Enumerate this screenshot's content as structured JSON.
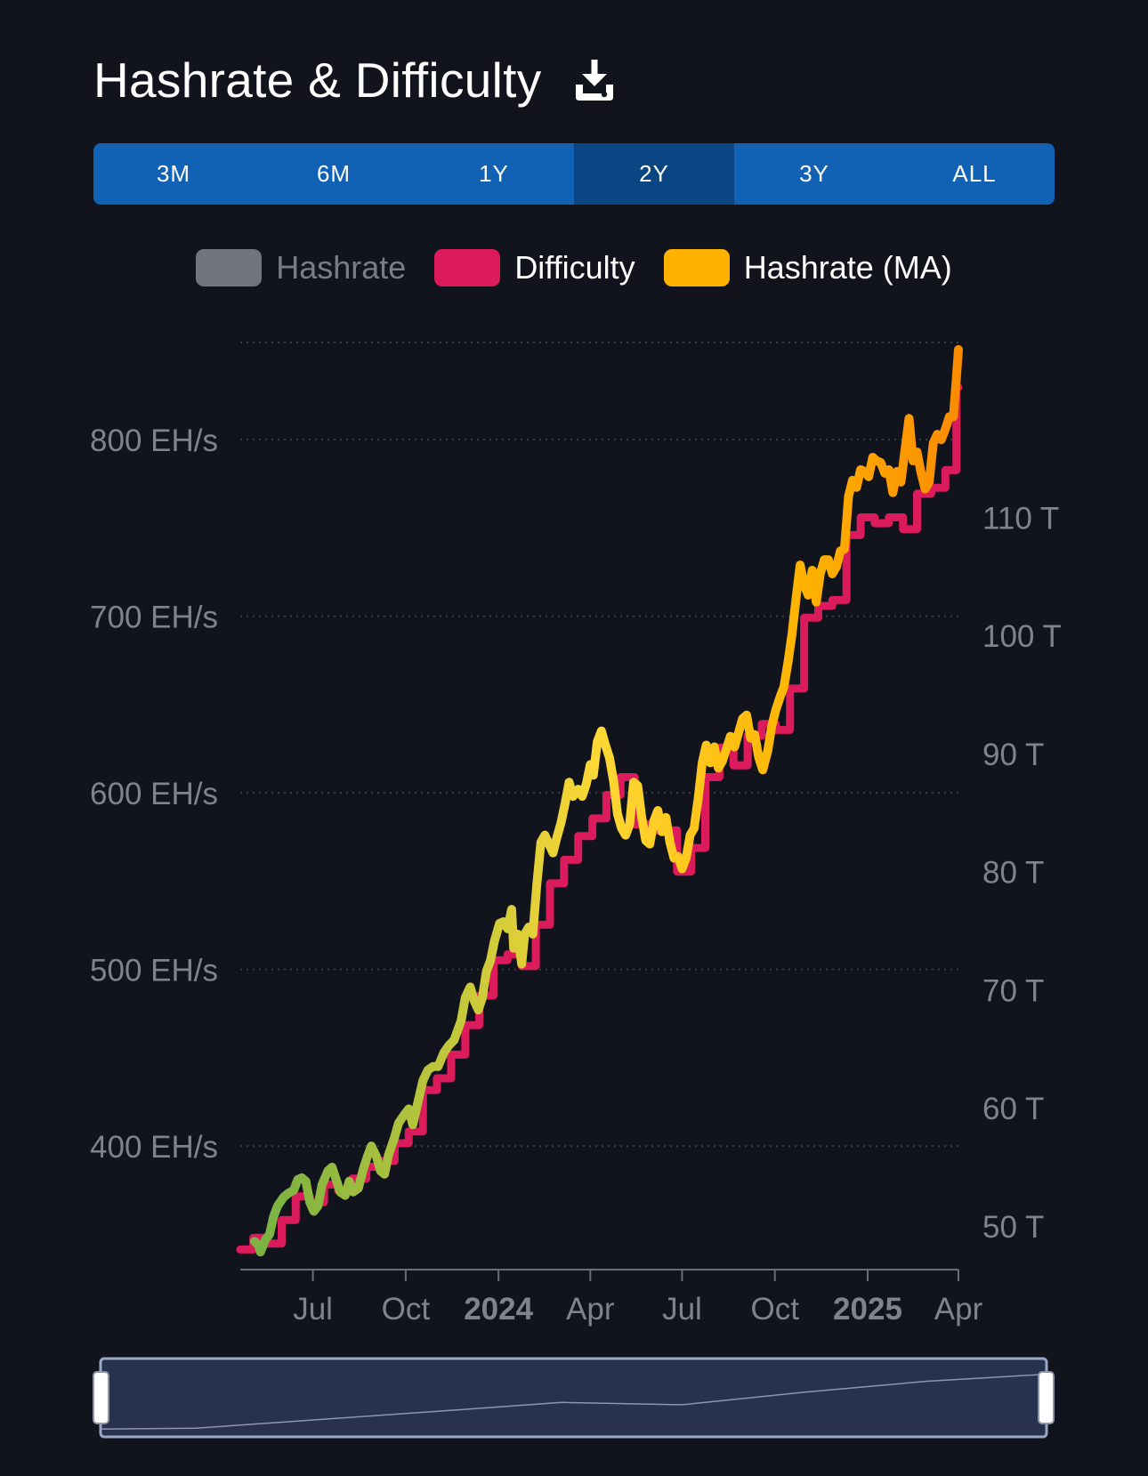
{
  "header": {
    "title": "Hashrate & Difficulty",
    "download_icon": "download-icon"
  },
  "ranges": [
    {
      "label": "3M",
      "active": false
    },
    {
      "label": "6M",
      "active": false
    },
    {
      "label": "1Y",
      "active": false
    },
    {
      "label": "2Y",
      "active": true
    },
    {
      "label": "3Y",
      "active": false
    },
    {
      "label": "ALL",
      "active": false
    }
  ],
  "legend": [
    {
      "label": "Hashrate",
      "color": "#72757f",
      "enabled": false
    },
    {
      "label": "Difficulty",
      "color": "#db1b5c",
      "enabled": true
    },
    {
      "label": "Hashrate (MA)",
      "color": "#ffb300",
      "enabled": true
    }
  ],
  "colors": {
    "background": "#11131d",
    "grid": "#3a3d48",
    "axis_text": "#80838d",
    "ma_gradient": [
      "#7cb342",
      "#fdd835",
      "#ffb300",
      "#fb8c00"
    ],
    "difficulty": "#db1b5c",
    "navigator_fill": "#28324f",
    "navigator_border": "#9aa8c7"
  },
  "chart_data": {
    "type": "line",
    "x_range": [
      "2023-04-20",
      "2025-04-01"
    ],
    "x_ticks": [
      {
        "label": "Jul",
        "date": "2023-07-01",
        "bold": false
      },
      {
        "label": "Oct",
        "date": "2023-10-01",
        "bold": false
      },
      {
        "label": "2024",
        "date": "2024-01-01",
        "bold": true
      },
      {
        "label": "Apr",
        "date": "2024-04-01",
        "bold": false
      },
      {
        "label": "Jul",
        "date": "2024-07-01",
        "bold": false
      },
      {
        "label": "Oct",
        "date": "2024-10-01",
        "bold": false
      },
      {
        "label": "2025",
        "date": "2025-01-01",
        "bold": true
      },
      {
        "label": "Apr",
        "date": "2025-04-01",
        "bold": false
      }
    ],
    "y_left": {
      "unit": "EH/s",
      "ticks": [
        400,
        500,
        600,
        700,
        800
      ],
      "tick_labels": [
        "400 EH/s",
        "500 EH/s",
        "600 EH/s",
        "700 EH/s",
        "800 EH/s"
      ],
      "range": [
        330,
        855
      ]
    },
    "y_right": {
      "unit": "T",
      "ticks": [
        50,
        60,
        70,
        80,
        90,
        100,
        110
      ],
      "tick_labels": [
        "50 T",
        "60 T",
        "70 T",
        "80 T",
        "90 T",
        "100 T",
        "110 T"
      ],
      "range": [
        46.3,
        124.8
      ]
    },
    "series": [
      {
        "name": "Difficulty",
        "axis": "right",
        "step": true,
        "points": [
          [
            "2023-04-20",
            48.0
          ],
          [
            "2023-05-03",
            49.0
          ],
          [
            "2023-05-17",
            48.5
          ],
          [
            "2023-05-31",
            50.5
          ],
          [
            "2023-06-14",
            52.5
          ],
          [
            "2023-06-28",
            52.0
          ],
          [
            "2023-07-12",
            53.5
          ],
          [
            "2023-07-26",
            53.0
          ],
          [
            "2023-08-09",
            54.0
          ],
          [
            "2023-08-23",
            55.0
          ],
          [
            "2023-09-06",
            55.5
          ],
          [
            "2023-09-20",
            57.0
          ],
          [
            "2023-10-04",
            58.0
          ],
          [
            "2023-10-18",
            61.5
          ],
          [
            "2023-11-01",
            62.5
          ],
          [
            "2023-11-15",
            64.5
          ],
          [
            "2023-11-29",
            67.0
          ],
          [
            "2023-12-13",
            69.5
          ],
          [
            "2023-12-27",
            72.5
          ],
          [
            "2024-01-10",
            73.0
          ],
          [
            "2024-01-24",
            72.0
          ],
          [
            "2024-02-07",
            75.5
          ],
          [
            "2024-02-21",
            79.0
          ],
          [
            "2024-03-06",
            81.0
          ],
          [
            "2024-03-20",
            83.0
          ],
          [
            "2024-04-03",
            84.5
          ],
          [
            "2024-04-17",
            86.5
          ],
          [
            "2024-05-01",
            88.0
          ],
          [
            "2024-05-15",
            84.0
          ],
          [
            "2024-05-29",
            83.5
          ],
          [
            "2024-06-12",
            83.5
          ],
          [
            "2024-06-26",
            80.0
          ],
          [
            "2024-07-10",
            82.0
          ],
          [
            "2024-07-24",
            88.0
          ],
          [
            "2024-08-07",
            90.5
          ],
          [
            "2024-08-21",
            89.0
          ],
          [
            "2024-09-04",
            91.5
          ],
          [
            "2024-09-18",
            92.5
          ],
          [
            "2024-10-02",
            92.0
          ],
          [
            "2024-10-16",
            95.5
          ],
          [
            "2024-10-30",
            101.5
          ],
          [
            "2024-11-13",
            102.5
          ],
          [
            "2024-11-27",
            103.0
          ],
          [
            "2024-12-11",
            108.5
          ],
          [
            "2024-12-25",
            110.0
          ],
          [
            "2025-01-08",
            109.5
          ],
          [
            "2025-01-22",
            110.0
          ],
          [
            "2025-02-05",
            109.0
          ],
          [
            "2025-02-19",
            112.0
          ],
          [
            "2025-03-05",
            112.5
          ],
          [
            "2025-03-19",
            114.0
          ],
          [
            "2025-03-30",
            121.0
          ],
          [
            "2025-04-01",
            121.0
          ]
        ]
      },
      {
        "name": "Hashrate (MA)",
        "axis": "left",
        "points": [
          [
            "2023-05-04",
            346
          ],
          [
            "2023-05-08",
            344
          ],
          [
            "2023-05-10",
            340
          ],
          [
            "2023-05-15",
            347
          ],
          [
            "2023-05-19",
            350
          ],
          [
            "2023-05-23",
            360
          ],
          [
            "2023-05-27",
            366
          ],
          [
            "2023-06-02",
            371
          ],
          [
            "2023-06-06",
            373
          ],
          [
            "2023-06-12",
            375
          ],
          [
            "2023-06-16",
            381
          ],
          [
            "2023-06-20",
            382
          ],
          [
            "2023-06-24",
            380
          ],
          [
            "2023-06-28",
            368
          ],
          [
            "2023-07-02",
            363
          ],
          [
            "2023-07-06",
            366
          ],
          [
            "2023-07-10",
            378
          ],
          [
            "2023-07-16",
            386
          ],
          [
            "2023-07-20",
            388
          ],
          [
            "2023-07-24",
            381
          ],
          [
            "2023-07-28",
            374
          ],
          [
            "2023-08-02",
            372
          ],
          [
            "2023-08-06",
            380
          ],
          [
            "2023-08-10",
            374
          ],
          [
            "2023-08-15",
            376
          ],
          [
            "2023-08-20",
            387
          ],
          [
            "2023-08-24",
            394
          ],
          [
            "2023-08-28",
            400
          ],
          [
            "2023-09-02",
            394
          ],
          [
            "2023-09-06",
            386
          ],
          [
            "2023-09-10",
            384
          ],
          [
            "2023-09-14",
            395
          ],
          [
            "2023-09-20",
            405
          ],
          [
            "2023-09-24",
            413
          ],
          [
            "2023-09-30",
            418
          ],
          [
            "2023-10-04",
            421
          ],
          [
            "2023-10-08",
            412
          ],
          [
            "2023-10-14",
            427
          ],
          [
            "2023-10-18",
            437
          ],
          [
            "2023-10-23",
            443
          ],
          [
            "2023-10-28",
            445
          ],
          [
            "2023-11-02",
            445
          ],
          [
            "2023-11-08",
            453
          ],
          [
            "2023-11-13",
            457
          ],
          [
            "2023-11-18",
            460
          ],
          [
            "2023-11-25",
            471
          ],
          [
            "2023-11-29",
            484
          ],
          [
            "2023-12-04",
            490
          ],
          [
            "2023-12-08",
            482
          ],
          [
            "2023-12-12",
            477
          ],
          [
            "2023-12-16",
            484
          ],
          [
            "2023-12-20",
            499
          ],
          [
            "2023-12-24",
            505
          ],
          [
            "2023-12-28",
            516
          ],
          [
            "2024-01-02",
            526
          ],
          [
            "2024-01-06",
            527
          ],
          [
            "2024-01-10",
            523
          ],
          [
            "2024-01-14",
            534
          ],
          [
            "2024-01-16",
            512
          ],
          [
            "2024-01-20",
            520
          ],
          [
            "2024-01-24",
            503
          ],
          [
            "2024-01-27",
            520
          ],
          [
            "2024-01-31",
            524
          ],
          [
            "2024-02-04",
            520
          ],
          [
            "2024-02-08",
            548
          ],
          [
            "2024-02-12",
            572
          ],
          [
            "2024-02-16",
            576
          ],
          [
            "2024-02-20",
            571
          ],
          [
            "2024-02-24",
            566
          ],
          [
            "2024-02-28",
            575
          ],
          [
            "2024-03-03",
            583
          ],
          [
            "2024-03-07",
            594
          ],
          [
            "2024-03-11",
            606
          ],
          [
            "2024-03-15",
            598
          ],
          [
            "2024-03-20",
            602
          ],
          [
            "2024-03-24",
            598
          ],
          [
            "2024-03-28",
            605
          ],
          [
            "2024-04-01",
            616
          ],
          [
            "2024-04-04",
            610
          ],
          [
            "2024-04-08",
            629
          ],
          [
            "2024-04-12",
            635
          ],
          [
            "2024-04-16",
            627
          ],
          [
            "2024-04-20",
            620
          ],
          [
            "2024-04-24",
            607
          ],
          [
            "2024-04-28",
            588
          ],
          [
            "2024-05-02",
            580
          ],
          [
            "2024-05-06",
            576
          ],
          [
            "2024-05-10",
            582
          ],
          [
            "2024-05-14",
            606
          ],
          [
            "2024-05-18",
            604
          ],
          [
            "2024-05-22",
            586
          ],
          [
            "2024-05-26",
            573
          ],
          [
            "2024-05-30",
            571
          ],
          [
            "2024-06-03",
            584
          ],
          [
            "2024-06-07",
            590
          ],
          [
            "2024-06-11",
            578
          ],
          [
            "2024-06-15",
            586
          ],
          [
            "2024-06-19",
            572
          ],
          [
            "2024-06-23",
            563
          ],
          [
            "2024-06-27",
            564
          ],
          [
            "2024-07-01",
            557
          ],
          [
            "2024-07-05",
            563
          ],
          [
            "2024-07-09",
            576
          ],
          [
            "2024-07-13",
            580
          ],
          [
            "2024-07-17",
            597
          ],
          [
            "2024-07-21",
            617
          ],
          [
            "2024-07-25",
            627
          ],
          [
            "2024-07-29",
            617
          ],
          [
            "2024-08-02",
            626
          ],
          [
            "2024-08-06",
            614
          ],
          [
            "2024-08-10",
            618
          ],
          [
            "2024-08-14",
            625
          ],
          [
            "2024-08-18",
            632
          ],
          [
            "2024-08-22",
            626
          ],
          [
            "2024-08-26",
            634
          ],
          [
            "2024-08-30",
            642
          ],
          [
            "2024-09-03",
            644
          ],
          [
            "2024-09-07",
            631
          ],
          [
            "2024-09-11",
            633
          ],
          [
            "2024-09-15",
            620
          ],
          [
            "2024-09-19",
            613
          ],
          [
            "2024-09-24",
            624
          ],
          [
            "2024-09-28",
            638
          ],
          [
            "2024-10-02",
            647
          ],
          [
            "2024-10-06",
            654
          ],
          [
            "2024-10-10",
            660
          ],
          [
            "2024-10-14",
            674
          ],
          [
            "2024-10-18",
            690
          ],
          [
            "2024-10-22",
            710
          ],
          [
            "2024-10-26",
            729
          ],
          [
            "2024-10-30",
            718
          ],
          [
            "2024-11-03",
            712
          ],
          [
            "2024-11-07",
            726
          ],
          [
            "2024-11-11",
            708
          ],
          [
            "2024-11-15",
            724
          ],
          [
            "2024-11-19",
            732
          ],
          [
            "2024-11-23",
            732
          ],
          [
            "2024-11-27",
            724
          ],
          [
            "2024-12-01",
            728
          ],
          [
            "2024-12-05",
            737
          ],
          [
            "2024-12-09",
            738
          ],
          [
            "2024-12-13",
            768
          ],
          [
            "2024-12-17",
            777
          ],
          [
            "2024-12-21",
            773
          ],
          [
            "2024-12-25",
            783
          ],
          [
            "2024-12-29",
            782
          ],
          [
            "2025-01-02",
            779
          ],
          [
            "2025-01-06",
            790
          ],
          [
            "2025-01-10",
            788
          ],
          [
            "2025-01-14",
            787
          ],
          [
            "2025-01-18",
            781
          ],
          [
            "2025-01-22",
            783
          ],
          [
            "2025-01-26",
            770
          ],
          [
            "2025-01-30",
            782
          ],
          [
            "2025-02-03",
            776
          ],
          [
            "2025-02-07",
            794
          ],
          [
            "2025-02-11",
            812
          ],
          [
            "2025-02-15",
            788
          ],
          [
            "2025-02-19",
            793
          ],
          [
            "2025-02-23",
            781
          ],
          [
            "2025-02-27",
            772
          ],
          [
            "2025-03-03",
            776
          ],
          [
            "2025-03-07",
            798
          ],
          [
            "2025-03-11",
            803
          ],
          [
            "2025-03-15",
            800
          ],
          [
            "2025-03-19",
            806
          ],
          [
            "2025-03-23",
            813
          ],
          [
            "2025-03-27",
            813
          ],
          [
            "2025-03-30",
            835
          ],
          [
            "2025-04-01",
            851
          ]
        ]
      }
    ],
    "navigator": {
      "points": [
        [
          "2023-04-20",
          0.1
        ],
        [
          "2023-07-01",
          0.11
        ],
        [
          "2023-10-01",
          0.22
        ],
        [
          "2024-01-01",
          0.33
        ],
        [
          "2024-04-01",
          0.44
        ],
        [
          "2024-07-01",
          0.41
        ],
        [
          "2024-10-01",
          0.57
        ],
        [
          "2025-01-01",
          0.71
        ],
        [
          "2025-04-01",
          0.8
        ]
      ]
    }
  }
}
